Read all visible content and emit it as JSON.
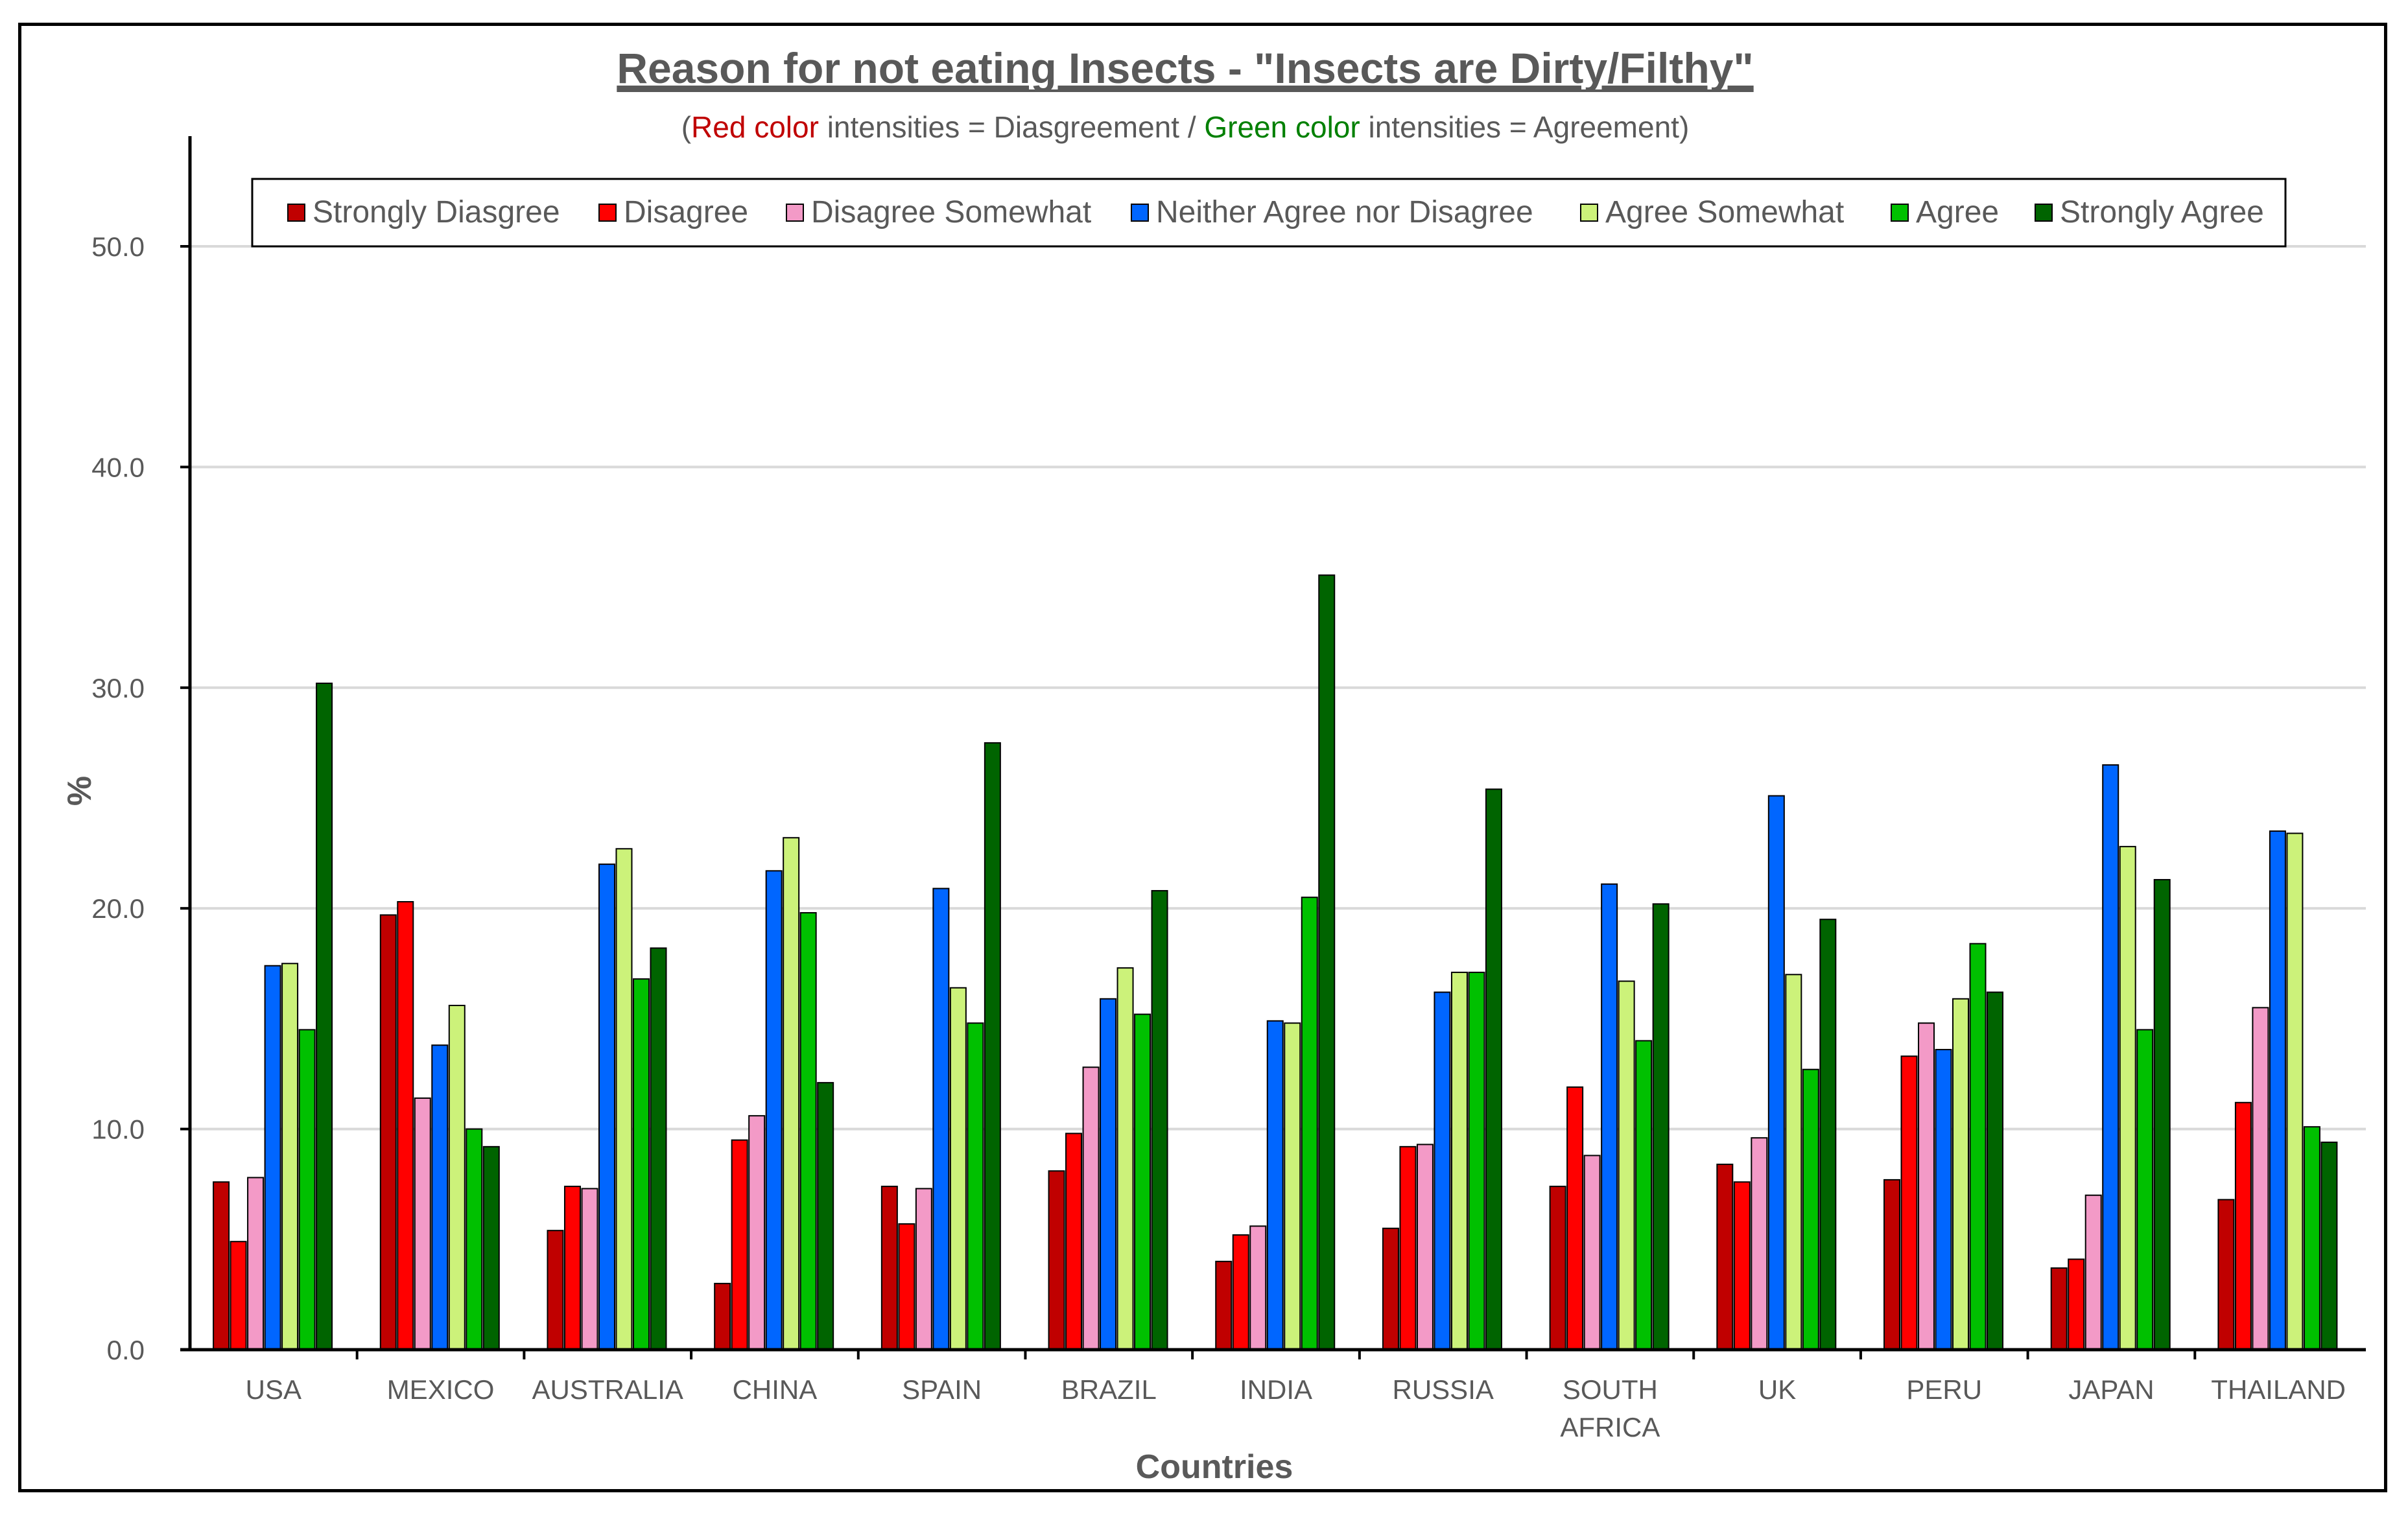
{
  "chart_data": {
    "type": "bar",
    "title": "Reason for not eating Insects - \"Insects are Dirty/Filthy\"",
    "subtitle": {
      "open": "(",
      "red_part": "Red color",
      "middle": " intensities = Diasgreement / ",
      "green_part": "Green color",
      "end": " intensities = Agreement)",
      "red_color": "#c00000",
      "green_color": "#008000"
    },
    "xlabel": "Countries",
    "ylabel": "%",
    "ylim": [
      0,
      50
    ],
    "yticks": [
      "0.0",
      "10.0",
      "20.0",
      "30.0",
      "40.0",
      "50.0"
    ],
    "grid": true,
    "legend_position": "top",
    "categories": [
      [
        "USA"
      ],
      [
        "MEXICO"
      ],
      [
        "AUSTRALIA"
      ],
      [
        "CHINA"
      ],
      [
        "SPAIN"
      ],
      [
        "BRAZIL"
      ],
      [
        "INDIA"
      ],
      [
        "RUSSIA"
      ],
      [
        "SOUTH",
        "AFRICA"
      ],
      [
        "UK"
      ],
      [
        "PERU"
      ],
      [
        "JAPAN"
      ],
      [
        "THAILAND"
      ]
    ],
    "series": [
      {
        "name": "Strongly Diasgree",
        "color": "#c00000",
        "values": [
          7.6,
          19.7,
          5.4,
          3.0,
          7.4,
          8.1,
          4.0,
          5.5,
          7.4,
          8.4,
          7.7,
          3.7,
          6.8
        ]
      },
      {
        "name": "Disagree",
        "color": "#ff0000",
        "values": [
          4.9,
          20.3,
          7.4,
          9.5,
          5.7,
          9.8,
          5.2,
          9.2,
          11.9,
          7.6,
          13.3,
          4.1,
          11.2
        ]
      },
      {
        "name": "Disagree Somewhat",
        "color": "#f39ac7",
        "values": [
          7.8,
          11.4,
          7.3,
          10.6,
          7.3,
          12.8,
          5.6,
          9.3,
          8.8,
          9.6,
          14.8,
          7.0,
          15.5
        ]
      },
      {
        "name": "Neither Agree nor Disagree",
        "color": "#0066ff",
        "values": [
          17.4,
          13.8,
          22.0,
          21.7,
          20.9,
          15.9,
          14.9,
          16.2,
          21.1,
          25.1,
          13.6,
          26.5,
          23.5
        ]
      },
      {
        "name": "Agree Somewhat",
        "color": "#ccf27a",
        "values": [
          17.5,
          15.6,
          22.7,
          23.2,
          16.4,
          17.3,
          14.8,
          17.1,
          16.7,
          17.0,
          15.9,
          22.8,
          23.4
        ]
      },
      {
        "name": "Agree",
        "color": "#00c000",
        "values": [
          14.5,
          10.0,
          16.8,
          19.8,
          14.8,
          15.2,
          20.5,
          17.1,
          14.0,
          12.7,
          18.4,
          14.5,
          10.1
        ]
      },
      {
        "name": "Strongly Agree",
        "color": "#006400",
        "values": [
          30.2,
          9.2,
          18.2,
          12.1,
          27.5,
          20.8,
          35.1,
          25.4,
          20.2,
          19.5,
          16.2,
          21.3,
          9.4
        ]
      }
    ]
  }
}
